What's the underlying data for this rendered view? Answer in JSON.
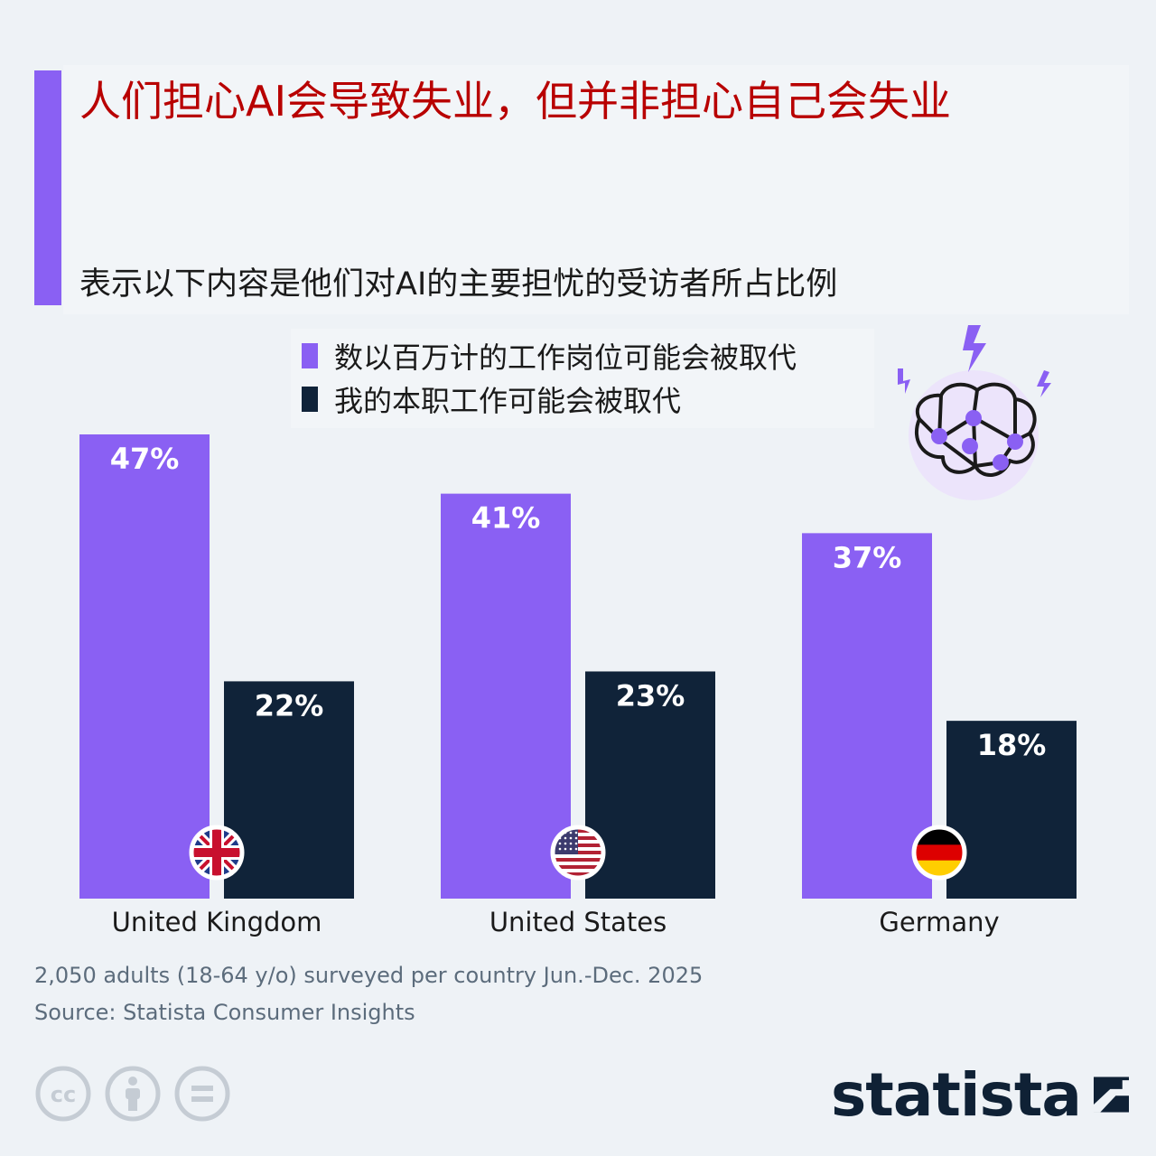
{
  "header": {
    "title": "人们担心AI会导致失业，但并非担心自己会失业",
    "subtitle": "表示以下内容是他们对AI的主要担忧的受访者所占比例"
  },
  "colors": {
    "accent": "#8a60f3",
    "series_1": "#8a60f3",
    "series_2": "#102339",
    "title": "#b80000",
    "background": "#eef2f6"
  },
  "chart_data": {
    "type": "bar",
    "categories": [
      "United Kingdom",
      "United States",
      "Germany"
    ],
    "series": [
      {
        "name": "数以百万计的工作岗位可能会被取代",
        "values": [
          47,
          41,
          37
        ],
        "labels": [
          "47%",
          "41%",
          "37%"
        ]
      },
      {
        "name": "我的本职工作可能会被取代",
        "values": [
          22,
          23,
          18
        ],
        "labels": [
          "22%",
          "23%",
          "18%"
        ]
      }
    ],
    "ylim": [
      0,
      50
    ],
    "grid": false,
    "legend_position": "top-center",
    "flags": [
      "uk-flag-icon",
      "us-flag-icon",
      "germany-flag-icon"
    ]
  },
  "footer": {
    "note": "2,050 adults (18-64 y/o) surveyed per country Jun.-Dec. 2025",
    "source": "Source: Statista Consumer Insights",
    "brand": "statista"
  },
  "icons": {
    "illustration": "ai-brain-icon",
    "license": [
      "creative-commons-icon",
      "attribution-icon",
      "no-derivatives-icon"
    ]
  }
}
